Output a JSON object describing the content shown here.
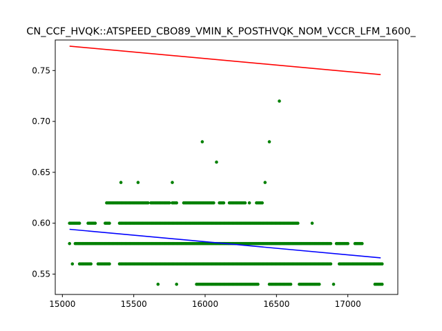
{
  "chart_data": {
    "type": "scatter",
    "title": "CN_CCF_HVQK::ATSPEED_CBO89_VMIN_K_POSTHVQK_NOM_VCCR_LFM_1600_",
    "xlabel": "",
    "ylabel": "",
    "xlim": [
      14950,
      17350
    ],
    "ylim": [
      0.53,
      0.78
    ],
    "xticks": [
      15000,
      15500,
      16000,
      16500,
      17000
    ],
    "xtick_labels": [
      "15000",
      "15500",
      "16000",
      "16500",
      "17000"
    ],
    "yticks": [
      0.55,
      0.6,
      0.65,
      0.7,
      0.75
    ],
    "ytick_labels": [
      "0.55",
      "0.60",
      "0.65",
      "0.70",
      "0.75"
    ],
    "grid": false,
    "colors": {
      "points": "#008000",
      "upper_line": "#ff0000",
      "lower_line": "#0000ff"
    },
    "bands": [
      {
        "y": 0.54,
        "x_ranges": [
          [
            15670,
            15670
          ],
          [
            15800,
            15800
          ],
          [
            15940,
            16370
          ],
          [
            16450,
            16600
          ],
          [
            16660,
            16800
          ],
          [
            16900,
            16900
          ],
          [
            17190,
            17240
          ]
        ]
      },
      {
        "y": 0.56,
        "x_ranges": [
          [
            15070,
            15070
          ],
          [
            15120,
            15200
          ],
          [
            15250,
            15330
          ],
          [
            15400,
            16880
          ],
          [
            16940,
            17240
          ]
        ]
      },
      {
        "y": 0.58,
        "x_ranges": [
          [
            15050,
            15050
          ],
          [
            15090,
            16880
          ],
          [
            16920,
            17000
          ],
          [
            17050,
            17100
          ]
        ]
      },
      {
        "y": 0.6,
        "x_ranges": [
          [
            15050,
            15120
          ],
          [
            15180,
            15230
          ],
          [
            15300,
            15330
          ],
          [
            15400,
            16650
          ],
          [
            16750,
            16750
          ]
        ]
      },
      {
        "y": 0.62,
        "x_ranges": [
          [
            15310,
            15600
          ],
          [
            15620,
            15750
          ],
          [
            15770,
            15800
          ],
          [
            15850,
            16060
          ],
          [
            16100,
            16130
          ],
          [
            16170,
            16280
          ],
          [
            16310,
            16310
          ],
          [
            16360,
            16400
          ]
        ]
      }
    ],
    "points": [
      {
        "x": 15410,
        "y": 0.64
      },
      {
        "x": 15530,
        "y": 0.64
      },
      {
        "x": 15770,
        "y": 0.64
      },
      {
        "x": 16420,
        "y": 0.64
      },
      {
        "x": 16080,
        "y": 0.66
      },
      {
        "x": 15980,
        "y": 0.68
      },
      {
        "x": 16450,
        "y": 0.68
      },
      {
        "x": 16520,
        "y": 0.72
      }
    ],
    "lines": [
      {
        "name": "",
        "color": "#ff0000",
        "x": [
          15050,
          17230
        ],
        "y": [
          0.774,
          0.746
        ]
      },
      {
        "name": "",
        "color": "#0000ff",
        "x": [
          15050,
          17230
        ],
        "y": [
          0.594,
          0.566
        ]
      }
    ]
  }
}
